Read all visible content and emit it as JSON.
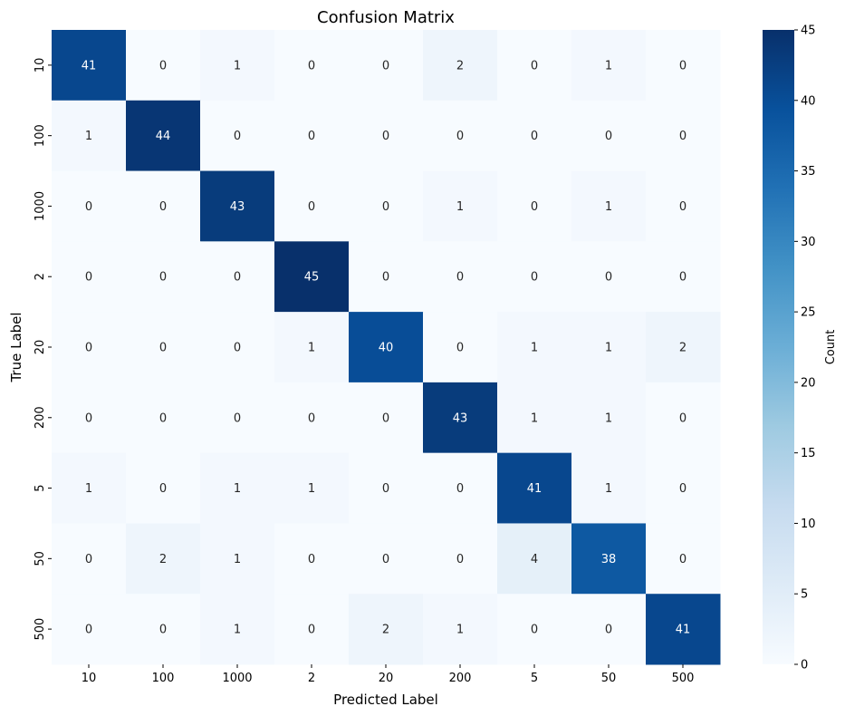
{
  "chart_data": {
    "type": "heatmap",
    "title": "Confusion Matrix",
    "xlabel": "Predicted Label",
    "ylabel": "True Label",
    "x_categories": [
      "10",
      "100",
      "1000",
      "2",
      "20",
      "200",
      "5",
      "50",
      "500"
    ],
    "y_categories": [
      "10",
      "100",
      "1000",
      "2",
      "20",
      "200",
      "5",
      "50",
      "500"
    ],
    "values": [
      [
        41,
        0,
        1,
        0,
        0,
        2,
        0,
        1,
        0
      ],
      [
        1,
        44,
        0,
        0,
        0,
        0,
        0,
        0,
        0
      ],
      [
        0,
        0,
        43,
        0,
        0,
        1,
        0,
        1,
        0
      ],
      [
        0,
        0,
        0,
        45,
        0,
        0,
        0,
        0,
        0
      ],
      [
        0,
        0,
        0,
        1,
        40,
        0,
        1,
        1,
        2
      ],
      [
        0,
        0,
        0,
        0,
        0,
        43,
        1,
        1,
        0
      ],
      [
        1,
        0,
        1,
        1,
        0,
        0,
        41,
        1,
        0
      ],
      [
        0,
        2,
        1,
        0,
        0,
        0,
        4,
        38,
        0
      ],
      [
        0,
        0,
        1,
        0,
        2,
        1,
        0,
        0,
        41
      ]
    ],
    "colormap": "Blues",
    "vmin": 0,
    "vmax": 45,
    "colorbar": {
      "label": "Count",
      "ticks": [
        "0",
        "5",
        "10",
        "15",
        "20",
        "25",
        "30",
        "35",
        "40",
        "45"
      ]
    }
  }
}
